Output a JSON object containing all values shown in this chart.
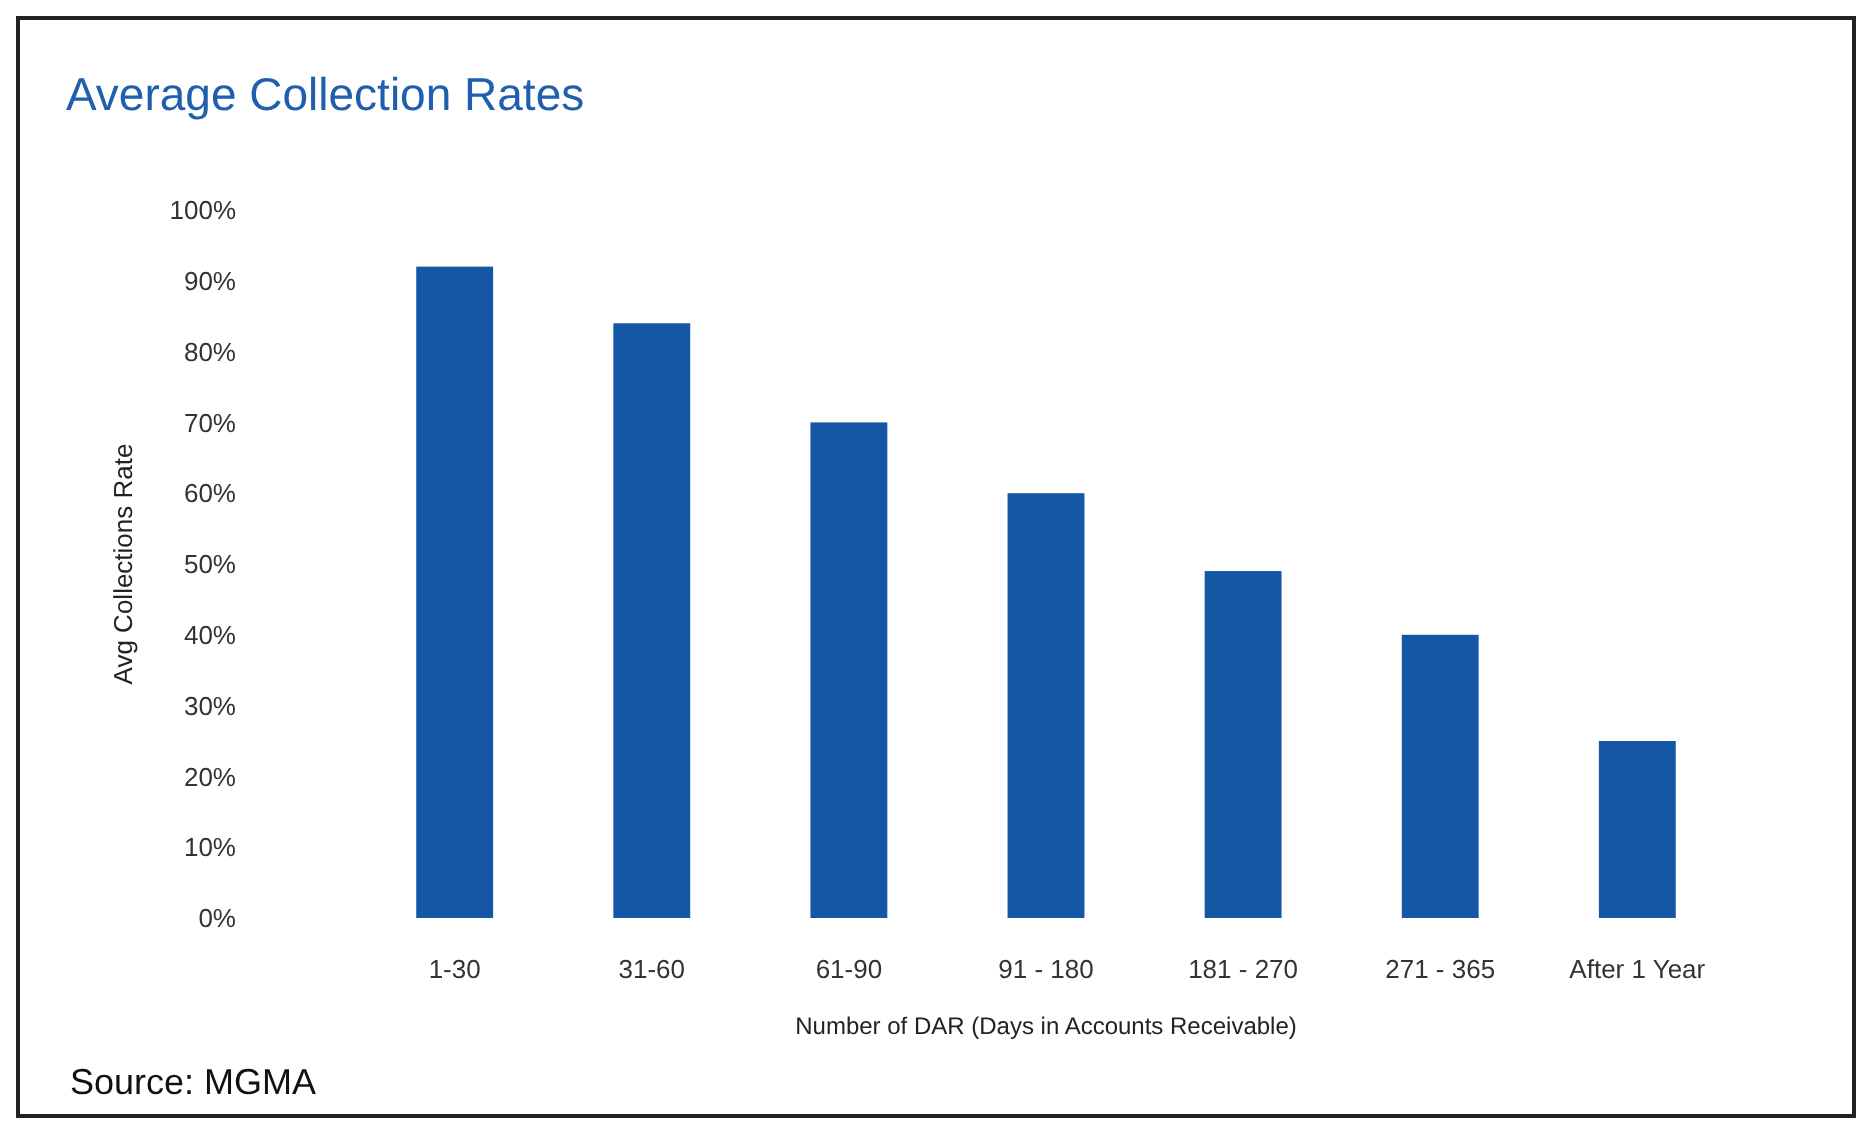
{
  "chart_data": {
    "type": "bar",
    "title": "Average Collection Rates",
    "xlabel": "Number of DAR (Days in Accounts Receivable)",
    "ylabel": "Avg Collections Rate",
    "categories": [
      "1-30",
      "31-60",
      "61-90",
      "91 - 180",
      "181 - 270",
      "271 - 365",
      "After 1 Year"
    ],
    "values": [
      92,
      84,
      70,
      60,
      49,
      40,
      25
    ],
    "color": "#1457a5",
    "ylim": [
      0,
      100
    ],
    "yticks": [
      {
        "value": 0,
        "label": "0%"
      },
      {
        "value": 10,
        "label": "10%"
      },
      {
        "value": 20,
        "label": "20%"
      },
      {
        "value": 30,
        "label": "30%"
      },
      {
        "value": 40,
        "label": "40%"
      },
      {
        "value": 50,
        "label": "50%"
      },
      {
        "value": 60,
        "label": "60%"
      },
      {
        "value": 70,
        "label": "70%"
      },
      {
        "value": 80,
        "label": "80%"
      },
      {
        "value": 90,
        "label": "90%"
      },
      {
        "value": 100,
        "label": "100%"
      }
    ],
    "annotations": [
      "Source: MGMA"
    ]
  }
}
